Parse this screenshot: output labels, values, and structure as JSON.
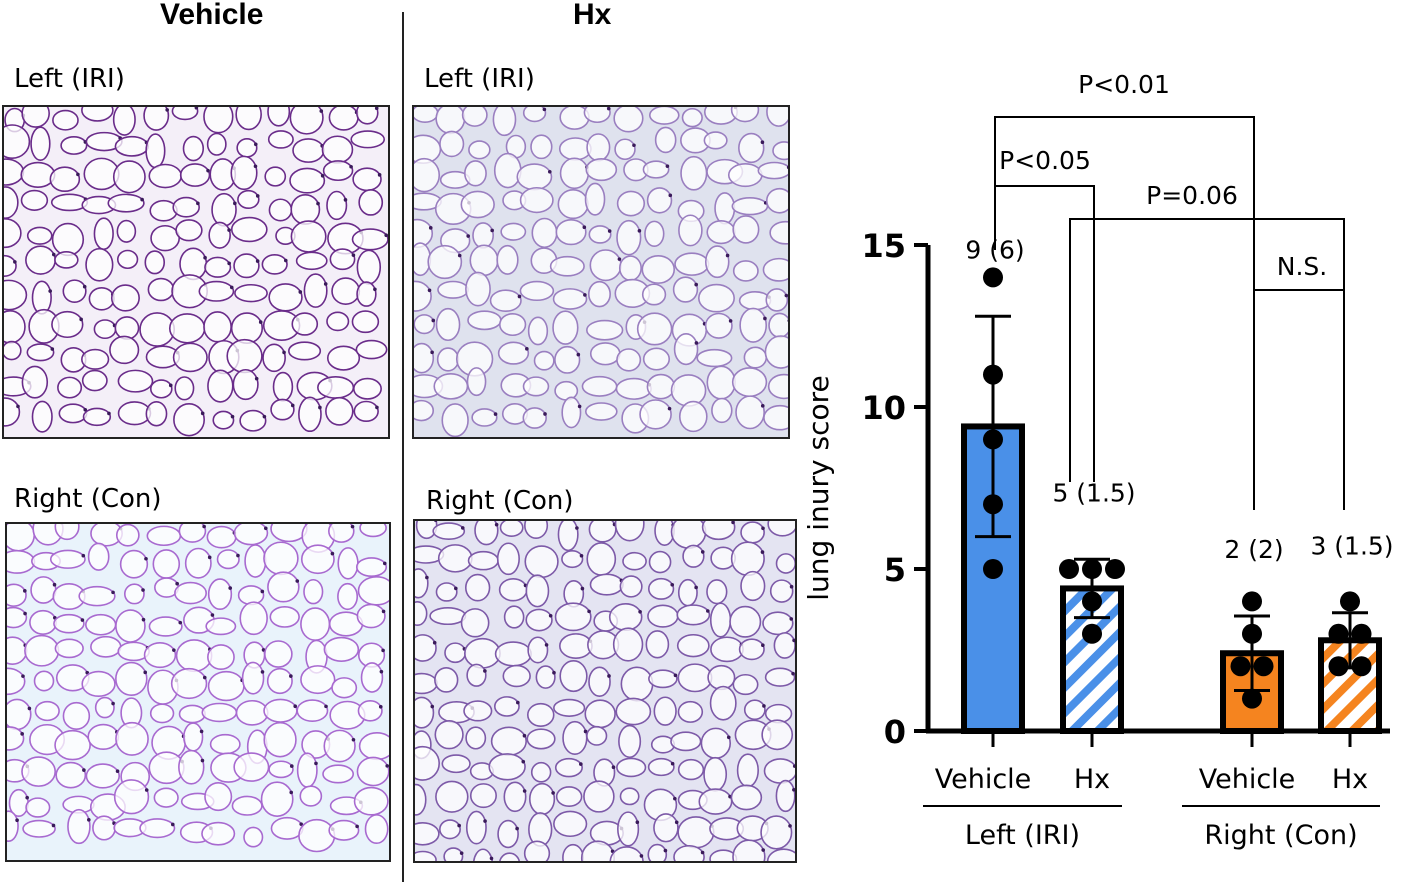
{
  "figure": {
    "columns": [
      {
        "title": "Vehicle"
      },
      {
        "title": "Hx"
      }
    ],
    "panels": [
      {
        "label": "Left (IRI)",
        "stain_color": "#6a2c8a",
        "background": "#f4eff8"
      },
      {
        "label": "Left (IRI)",
        "stain_color": "#9a7fc0",
        "background": "#dfe2ee"
      },
      {
        "label": "Right (Con)",
        "stain_color": "#a86ad0",
        "background": "#e9f3fb"
      },
      {
        "label": "Right (Con)",
        "stain_color": "#7d5aa8",
        "background": "#e4e4f2"
      }
    ]
  },
  "chart_data": {
    "type": "bar",
    "ylabel": "lung inury score",
    "ylim": [
      0,
      15
    ],
    "yticks": [
      0,
      5,
      10,
      15
    ],
    "categories": [
      "Vehicle",
      "Hx",
      "Vehicle",
      "Hx"
    ],
    "groups": [
      {
        "label": "Left (IRI)",
        "categories": [
          0,
          1
        ]
      },
      {
        "label": "Right (Con)",
        "categories": [
          2,
          3
        ]
      }
    ],
    "bars": [
      {
        "category": "Vehicle",
        "group": "Left (IRI)",
        "mean": 9.4,
        "sd": 3.4,
        "fill": "#4a90e8",
        "pattern": "solid",
        "label": "9 (6)",
        "points": [
          14,
          11,
          9,
          7,
          5
        ]
      },
      {
        "category": "Hx",
        "group": "Left (IRI)",
        "mean": 4.4,
        "sd": 0.9,
        "fill": "#4a90e8",
        "pattern": "striped",
        "label": "5 (1.5)",
        "points": [
          5,
          5,
          5,
          4,
          3
        ]
      },
      {
        "category": "Vehicle",
        "group": "Right (Con)",
        "mean": 2.4,
        "sd": 1.15,
        "fill": "#f5841f",
        "pattern": "solid",
        "label": "2 (2)",
        "points": [
          4,
          3,
          2,
          2,
          1
        ]
      },
      {
        "category": "Hx",
        "group": "Right (Con)",
        "mean": 2.8,
        "sd": 0.85,
        "fill": "#f5841f",
        "pattern": "striped",
        "label": "3 (1.5)",
        "points": [
          4,
          3,
          3,
          2,
          2
        ]
      }
    ],
    "comparisons": [
      {
        "between": [
          "Left (IRI) Vehicle",
          "Right (Con) Vehicle"
        ],
        "label": "P<0.01"
      },
      {
        "between": [
          "Left (IRI) Vehicle",
          "Left (IRI) Hx"
        ],
        "label": "P<0.05"
      },
      {
        "between": [
          "Left (IRI) Hx",
          "Right (Con) Hx"
        ],
        "label": "P=0.06"
      },
      {
        "between": [
          "Right (Con) Vehicle",
          "Right (Con) Hx"
        ],
        "label": "N.S."
      }
    ]
  }
}
